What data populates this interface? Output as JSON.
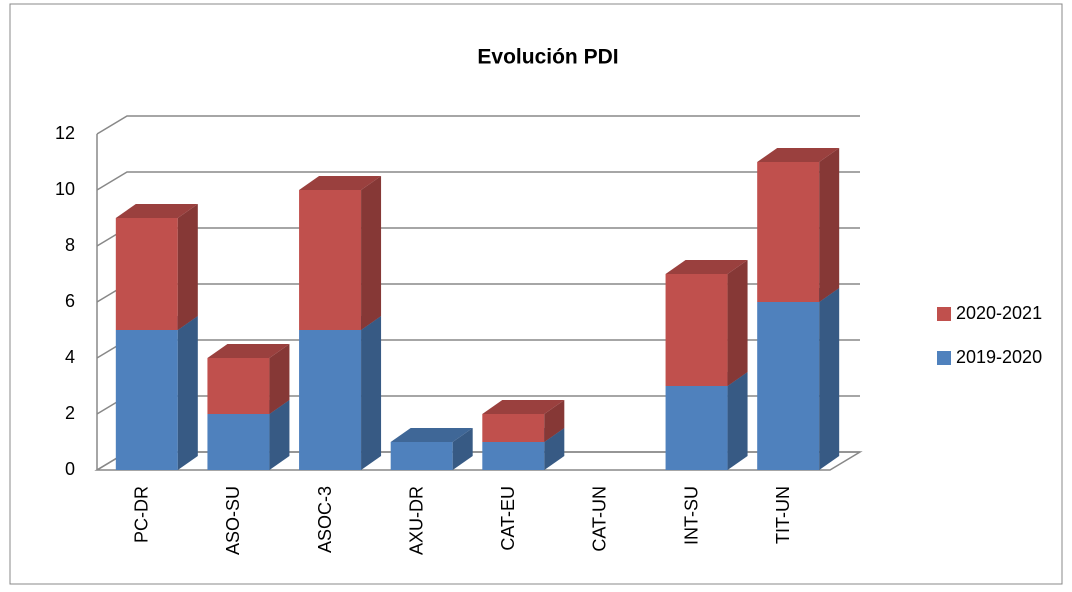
{
  "chart_data": {
    "type": "bar3d_stacked",
    "title": "Evolución PDI",
    "categories": [
      "PC-DR",
      "ASO-SU",
      "ASOC-3",
      "AXU-DR",
      "CAT-EU",
      "CAT-UN",
      "INT-SU",
      "TIT-UN"
    ],
    "series": [
      {
        "name": "2019-2020",
        "color": "#4f81bd",
        "values": [
          5,
          2,
          5,
          1,
          1,
          0,
          3,
          6
        ]
      },
      {
        "name": "2020-2021",
        "color": "#c0504d",
        "values": [
          4,
          2,
          5,
          0,
          1,
          0,
          4,
          5
        ]
      }
    ],
    "ylim": [
      0,
      12
    ],
    "yticks": [
      0,
      2,
      4,
      6,
      8,
      10,
      12
    ],
    "grid": true,
    "legend": "right"
  }
}
